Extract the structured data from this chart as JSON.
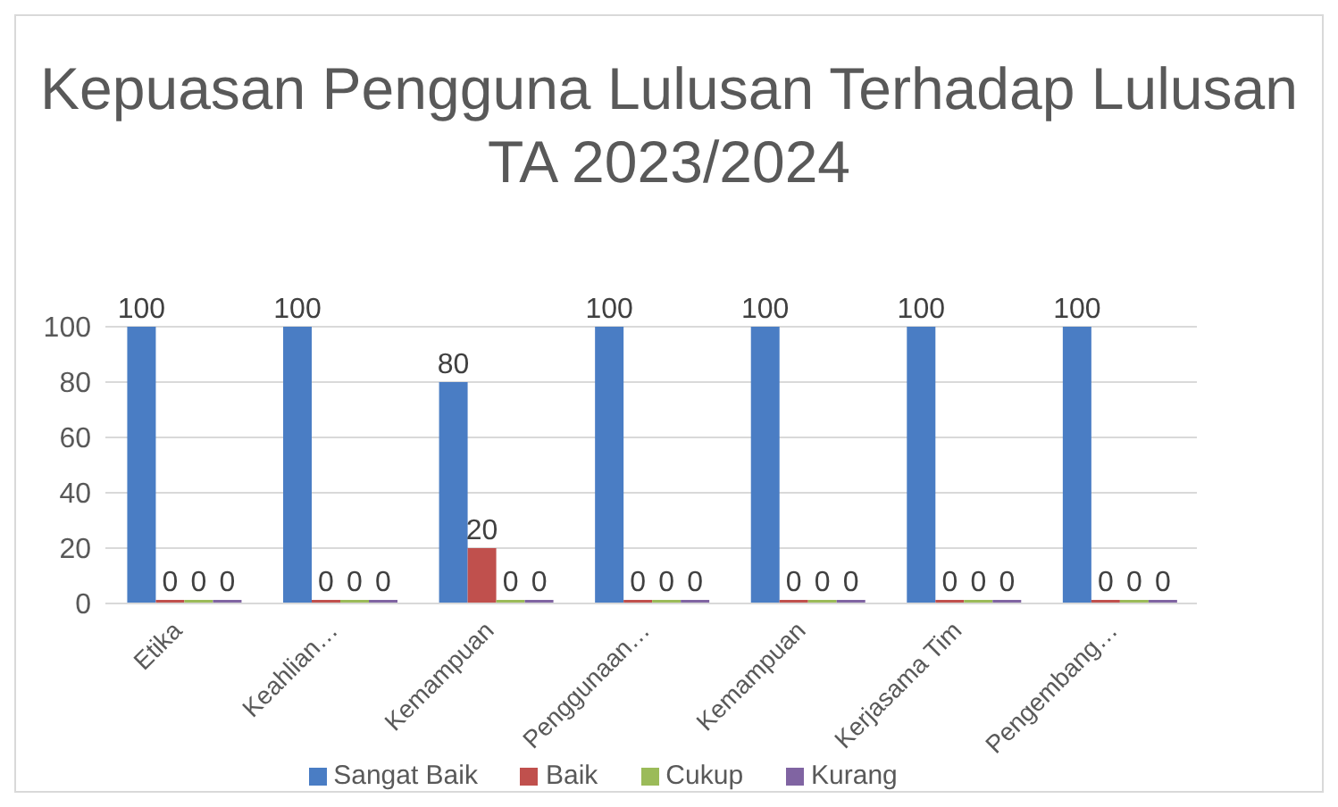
{
  "chart_data": {
    "type": "bar",
    "title": "Kepuasan Pengguna Lulusan Terhadap Lulusan",
    "subtitle": "TA 2023/2024",
    "categories": [
      "Etika",
      "Keahlian…",
      "Kemampuan",
      "Penggunaan…",
      "Kemampuan",
      "Kerjasama Tim",
      "Pengembang…"
    ],
    "series": [
      {
        "name": "Sangat Baik",
        "color": "#4a7dc4",
        "values": [
          100,
          100,
          80,
          100,
          100,
          100,
          100
        ]
      },
      {
        "name": "Baik",
        "color": "#c0504d",
        "values": [
          0,
          0,
          20,
          0,
          0,
          0,
          0
        ]
      },
      {
        "name": "Cukup",
        "color": "#9bbb59",
        "values": [
          0,
          0,
          0,
          0,
          0,
          0,
          0
        ]
      },
      {
        "name": "Kurang",
        "color": "#8064a2",
        "values": [
          0,
          0,
          0,
          0,
          0,
          0,
          0
        ]
      }
    ],
    "ylim": [
      0,
      100
    ],
    "yticks": [
      0,
      20,
      40,
      60,
      80,
      100
    ],
    "grid": "y",
    "legend": "bottom",
    "data_labels": true
  }
}
